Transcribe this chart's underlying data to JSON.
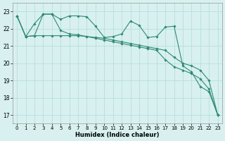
{
  "title": "",
  "xlabel": "Humidex (Indice chaleur)",
  "ylabel": "",
  "background_color": "#d8f0f0",
  "grid_color": "#b8dede",
  "line_color": "#2e8b72",
  "xlim": [
    -0.5,
    23.5
  ],
  "ylim": [
    16.5,
    23.5
  ],
  "yticks": [
    17,
    18,
    19,
    20,
    21,
    22,
    23
  ],
  "xticks": [
    0,
    1,
    2,
    3,
    4,
    5,
    6,
    7,
    8,
    9,
    10,
    11,
    12,
    13,
    14,
    15,
    16,
    17,
    18,
    19,
    20,
    21,
    22,
    23
  ],
  "series1_x": [
    0,
    1,
    2,
    3,
    4,
    5,
    6,
    7,
    8,
    9,
    10,
    11,
    12,
    13,
    14,
    15,
    16,
    17,
    18,
    19,
    20,
    21,
    22,
    23
  ],
  "series1_y": [
    22.75,
    21.55,
    22.3,
    22.85,
    22.85,
    22.55,
    22.75,
    22.75,
    22.7,
    22.15,
    21.5,
    21.55,
    21.7,
    22.45,
    22.2,
    21.5,
    21.55,
    22.1,
    22.15,
    19.85,
    19.5,
    18.65,
    18.35,
    17.0
  ],
  "series2_x": [
    0,
    1,
    2,
    3,
    4,
    5,
    6,
    7,
    8,
    9,
    10,
    11,
    12,
    13,
    14,
    15,
    16,
    17,
    18,
    19,
    20,
    21,
    22,
    23
  ],
  "series2_y": [
    22.75,
    21.55,
    21.6,
    21.6,
    21.6,
    21.6,
    21.6,
    21.6,
    21.55,
    21.5,
    21.45,
    21.35,
    21.25,
    21.15,
    21.05,
    20.95,
    20.85,
    20.75,
    20.35,
    20.0,
    19.85,
    19.6,
    19.0,
    17.0
  ],
  "series3_x": [
    0,
    1,
    2,
    3,
    4,
    5,
    6,
    7,
    8,
    9,
    10,
    11,
    12,
    13,
    14,
    15,
    16,
    17,
    18,
    19,
    20,
    21,
    22,
    23
  ],
  "series3_y": [
    22.75,
    21.55,
    21.6,
    22.85,
    22.85,
    21.9,
    21.7,
    21.65,
    21.55,
    21.45,
    21.35,
    21.25,
    21.15,
    21.05,
    20.95,
    20.85,
    20.75,
    20.2,
    19.8,
    19.6,
    19.4,
    19.1,
    18.5,
    17.0
  ]
}
